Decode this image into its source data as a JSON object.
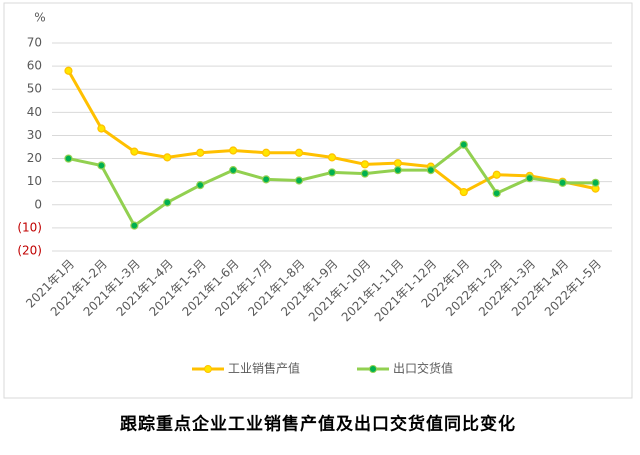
{
  "chart_data": {
    "type": "line",
    "title": "跟踪重点企业工业销售产值及出口交货值同比变化",
    "y_unit": "%",
    "categories": [
      "2021年1月",
      "2021年1-2月",
      "2021年1-3月",
      "2021年1-4月",
      "2021年1-5月",
      "2021年1-6月",
      "2021年1-7月",
      "2021年1-8月",
      "2021年1-9月",
      "2021年1-10月",
      "2021年1-11月",
      "2021年1-12月",
      "2022年1月",
      "2022年1-2月",
      "2022年1-3月",
      "2022年1-4月",
      "2022年1-5月"
    ],
    "series": [
      {
        "name": "工业销售产值",
        "color": "#ffc000",
        "marker_color": "#ffe600",
        "values": [
          58,
          33,
          23,
          20.5,
          22.5,
          23.5,
          22.5,
          22.5,
          20.5,
          17.5,
          18,
          16.5,
          5.5,
          13,
          12.5,
          10,
          7
        ]
      },
      {
        "name": "出口交货值",
        "color": "#92d050",
        "marker_color": "#00b050",
        "values": [
          20,
          17,
          -9,
          1,
          8.5,
          15,
          11,
          10.5,
          14,
          13.5,
          15,
          15,
          26,
          5,
          11.5,
          9.5,
          9.5
        ]
      }
    ],
    "ylim": [
      -20,
      70
    ],
    "yticks": [
      {
        "value": -20,
        "label": "(20)"
      },
      {
        "value": -10,
        "label": "(10)"
      },
      0,
      10,
      20,
      30,
      40,
      50,
      60,
      70
    ],
    "negative_tick_color": "#c00000",
    "grid": true
  }
}
